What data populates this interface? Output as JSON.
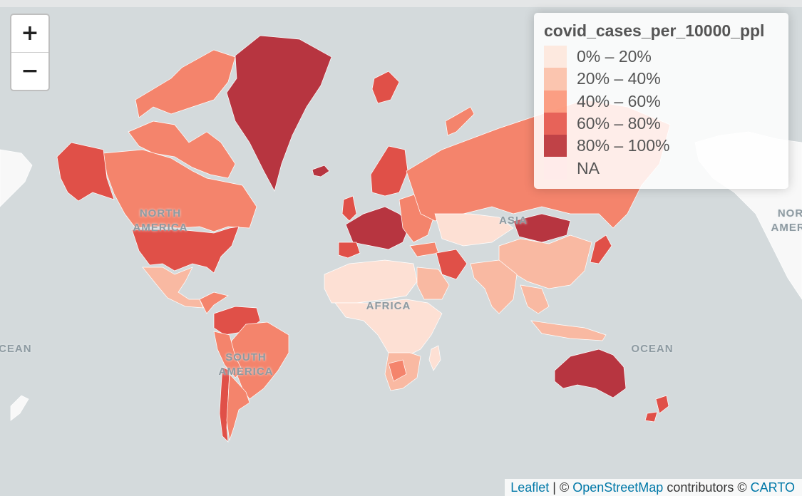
{
  "map": {
    "labels": [
      "NORTH AMERICA",
      "ASIA",
      "NORTH AMERICA",
      "AFRICA",
      "SOUTH AMERICA",
      "OCEAN",
      "OCEAN"
    ]
  },
  "zoom": {
    "in_label": "+",
    "out_label": "−"
  },
  "legend": {
    "title": "covid_cases_per_10000_ppl",
    "items": [
      {
        "label": "0% – 20%",
        "color": "#fee5d9"
      },
      {
        "label": "20% – 40%",
        "color": "#fcbba1"
      },
      {
        "label": "40% – 60%",
        "color": "#fc8d6d"
      },
      {
        "label": "60% – 80%",
        "color": "#e34a3f"
      },
      {
        "label": "80% – 100%",
        "color": "#b5232a"
      },
      {
        "label": "NA",
        "color": "#ffeaea"
      }
    ]
  },
  "attribution": {
    "leaflet": "Leaflet",
    "sep": " | © ",
    "osm": "OpenStreetMap",
    "contrib": " contributors © ",
    "carto": "CARTO"
  },
  "colors": {
    "sea": "#d4dadc",
    "land_na": "#f8f8f8",
    "q1": "#fde0d4",
    "q2": "#f9b9a2",
    "q3": "#f4846c",
    "q4": "#e05048",
    "q5": "#b73540"
  }
}
